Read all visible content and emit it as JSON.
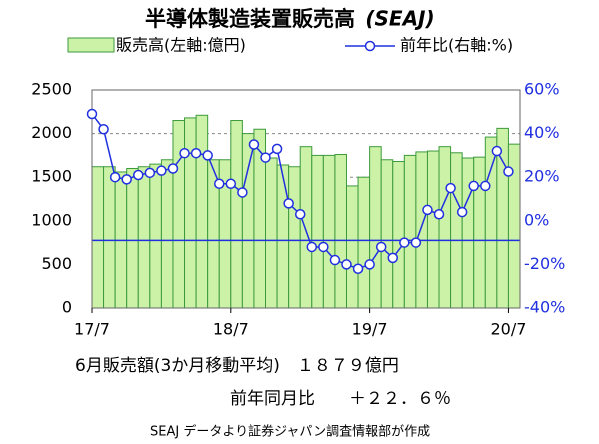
{
  "chart_data": {
    "type": "bar_line",
    "title": "半導体製造装置販売高",
    "title_note": "(SEAJ)",
    "categories": [
      "17/7",
      null,
      null,
      null,
      null,
      null,
      null,
      null,
      null,
      null,
      null,
      null,
      "18/7",
      null,
      null,
      null,
      null,
      null,
      null,
      null,
      null,
      null,
      null,
      null,
      "19/7",
      null,
      null,
      null,
      null,
      null,
      null,
      null,
      null,
      null,
      null,
      null,
      "20/7"
    ],
    "series": [
      {
        "name": "販売高(左軸:億円)",
        "type": "bar",
        "color": "#ccf2a8",
        "edge_color": "#3c9a3c",
        "values": [
          1620,
          1620,
          1560,
          1600,
          1620,
          1650,
          1700,
          2150,
          2180,
          2210,
          1700,
          1700,
          2150,
          2000,
          2050,
          1720,
          1640,
          1620,
          1850,
          1750,
          1750,
          1760,
          1400,
          1500,
          1850,
          1700,
          1680,
          1750,
          1790,
          1800,
          1850,
          1780,
          1720,
          1730,
          1960,
          2060,
          1879
        ]
      },
      {
        "name": "前年比(右軸:%)",
        "type": "line",
        "axis": "y2",
        "color": "#2030e0",
        "values": [
          49,
          42,
          20,
          19,
          21,
          22,
          23,
          24,
          31,
          31,
          30,
          17,
          17,
          13,
          35,
          29,
          33,
          8,
          3,
          -12,
          -12,
          -18,
          -20,
          -22,
          -20,
          -12,
          -17,
          -10,
          -10,
          5,
          3,
          15,
          4,
          16,
          16,
          32,
          22.6
        ]
      }
    ],
    "ylim": [
      0,
      2500
    ],
    "yticks": [
      0,
      500,
      1000,
      1500,
      2000,
      2500
    ],
    "y2lim": [
      -40,
      60
    ],
    "y2ticks": [
      {
        "value": -40,
        "label": "-40%"
      },
      {
        "value": -20,
        "label": "-20%"
      },
      {
        "value": 0,
        "label": "0%"
      },
      {
        "value": 20,
        "label": "20%"
      },
      {
        "value": 40,
        "label": "40%"
      },
      {
        "value": 60,
        "label": "60%"
      }
    ],
    "reference_line_y2": -9,
    "grid": true,
    "annotations": [
      "6月販売額(3か月移動平均)　１８７９億円",
      "前年同月比　　＋２２．６％",
      "SEAJ データより証券ジャパン調査情報部が作成"
    ]
  }
}
